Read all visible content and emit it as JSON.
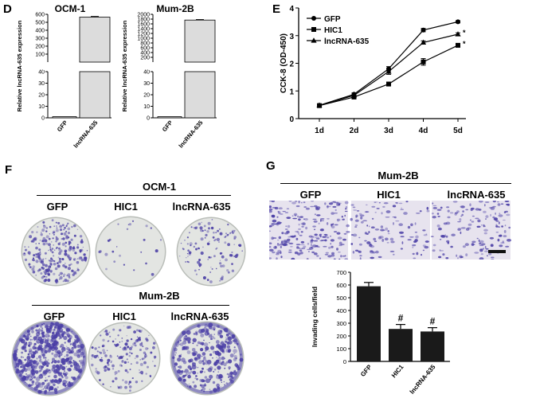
{
  "panels": {
    "D": {
      "letter": "D",
      "charts": [
        {
          "type": "bar",
          "title": "OCM-1",
          "ylabel": "Relative lncRNA-635 expression",
          "categories": [
            "GFP",
            "lncRNA-635"
          ],
          "values": [
            1,
            565
          ],
          "errors": [
            0.3,
            8
          ],
          "lower_ticks": [
            "0",
            "10",
            "20",
            "30",
            "40"
          ],
          "upper_ticks": [
            "100",
            "200",
            "300",
            "400",
            "500",
            "600"
          ]
        },
        {
          "type": "bar",
          "title": "Mum-2B",
          "ylabel": "Relative lncRNA-635 expression",
          "categories": [
            "GFP",
            "lncRNA-635"
          ],
          "values": [
            1,
            1760
          ],
          "errors": [
            0.3,
            20
          ],
          "lower_ticks": [
            "0",
            "10",
            "20",
            "30",
            "40"
          ],
          "upper_ticks": [
            "200",
            "400",
            "600",
            "800",
            "1000",
            "1200",
            "1400",
            "1600",
            "1800",
            "2000"
          ]
        }
      ]
    },
    "E": {
      "letter": "E",
      "chart": {
        "type": "line",
        "ylabel": "CCK-8 (OD-450)",
        "categories": [
          "1d",
          "2d",
          "3d",
          "4d",
          "5d"
        ],
        "yticks": [
          "0",
          "1",
          "2",
          "3",
          "4"
        ],
        "ylim": [
          0,
          4
        ],
        "legend_position": "top-left",
        "series": [
          {
            "name": "GFP",
            "marker": "circle",
            "values": [
              0.48,
              0.88,
              1.8,
              3.2,
              3.5
            ],
            "errors": [
              0.03,
              0.05,
              0.08,
              0.06,
              0.04
            ],
            "sig": ""
          },
          {
            "name": "HIC1",
            "marker": "square",
            "values": [
              0.47,
              0.78,
              1.25,
              2.05,
              2.65
            ],
            "errors": [
              0.03,
              0.04,
              0.06,
              0.12,
              0.06
            ],
            "sig": "*"
          },
          {
            "name": "lncRNA-635",
            "marker": "triangle",
            "values": [
              0.48,
              0.84,
              1.7,
              2.75,
              3.05
            ],
            "errors": [
              0.03,
              0.05,
              0.1,
              0.06,
              0.05
            ],
            "sig": "*"
          }
        ]
      }
    },
    "F": {
      "letter": "F",
      "groups": [
        {
          "title": "OCM-1",
          "labels": [
            "GFP",
            "HIC1",
            "lncRNA-635"
          ]
        },
        {
          "title": "Mum-2B",
          "labels": [
            "GFP",
            "HIC1",
            "lncRNA-635"
          ]
        }
      ]
    },
    "G": {
      "letter": "G",
      "title": "Mum-2B",
      "labels": [
        "GFP",
        "HIC1",
        "lncRNA-635"
      ],
      "chart": {
        "type": "bar",
        "ylabel": "Invading cells/field",
        "categories": [
          "GFP",
          "HIC1",
          "lncRNA-635"
        ],
        "values": [
          590,
          255,
          235
        ],
        "errors": [
          30,
          35,
          30
        ],
        "sig": [
          "",
          "#",
          "#"
        ],
        "yticks": [
          "0",
          "100",
          "200",
          "300",
          "400",
          "500",
          "600",
          "700"
        ],
        "ylim": [
          0,
          700
        ]
      }
    }
  },
  "colors": {
    "bar_fill_D": "#dcdcdc",
    "bar_fill_G": "#1a1a1a",
    "stain": "#4b3fa6",
    "plate_bg": "#e3e5e2"
  }
}
